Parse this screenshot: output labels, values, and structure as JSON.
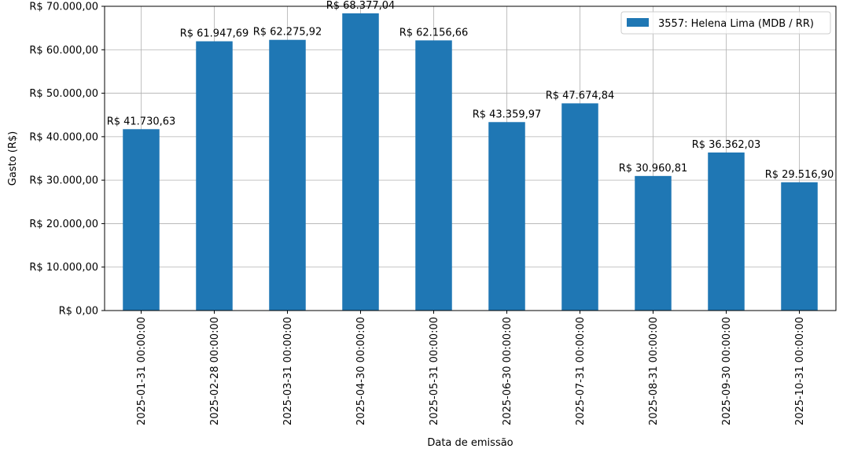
{
  "chart_data": {
    "type": "bar",
    "categories": [
      "2025-01-31 00:00:00",
      "2025-02-28 00:00:00",
      "2025-03-31 00:00:00",
      "2025-04-30 00:00:00",
      "2025-05-31 00:00:00",
      "2025-06-30 00:00:00",
      "2025-07-31 00:00:00",
      "2025-08-31 00:00:00",
      "2025-09-30 00:00:00",
      "2025-10-31 00:00:00"
    ],
    "series": [
      {
        "name": "3557: Helena Lima (MDB / RR)",
        "color": "#1f77b4",
        "values": [
          41730.63,
          61947.69,
          62275.92,
          68377.04,
          62156.66,
          43359.97,
          47674.84,
          30960.81,
          36362.03,
          29516.9
        ],
        "data_labels": [
          "R$ 41.730,63",
          "R$ 61.947,69",
          "R$ 62.275,92",
          "R$ 68.377,04",
          "R$ 62.156,66",
          "R$ 43.359,97",
          "R$ 47.674,84",
          "R$ 30.960,81",
          "R$ 36.362,03",
          "R$ 29.516,90"
        ]
      }
    ],
    "title": "",
    "xlabel": "Data de emissão",
    "ylabel": "Gasto (R$)",
    "ylim": [
      0,
      70000
    ],
    "yticks": [
      0,
      10000,
      20000,
      30000,
      40000,
      50000,
      60000,
      70000
    ],
    "ytick_labels": [
      "R$ 0,00",
      "R$ 10.000,00",
      "R$ 20.000,00",
      "R$ 30.000,00",
      "R$ 40.000,00",
      "R$ 50.000,00",
      "R$ 60.000,00",
      "R$ 70.000,00"
    ],
    "grid": true,
    "legend_position": "top-right"
  }
}
